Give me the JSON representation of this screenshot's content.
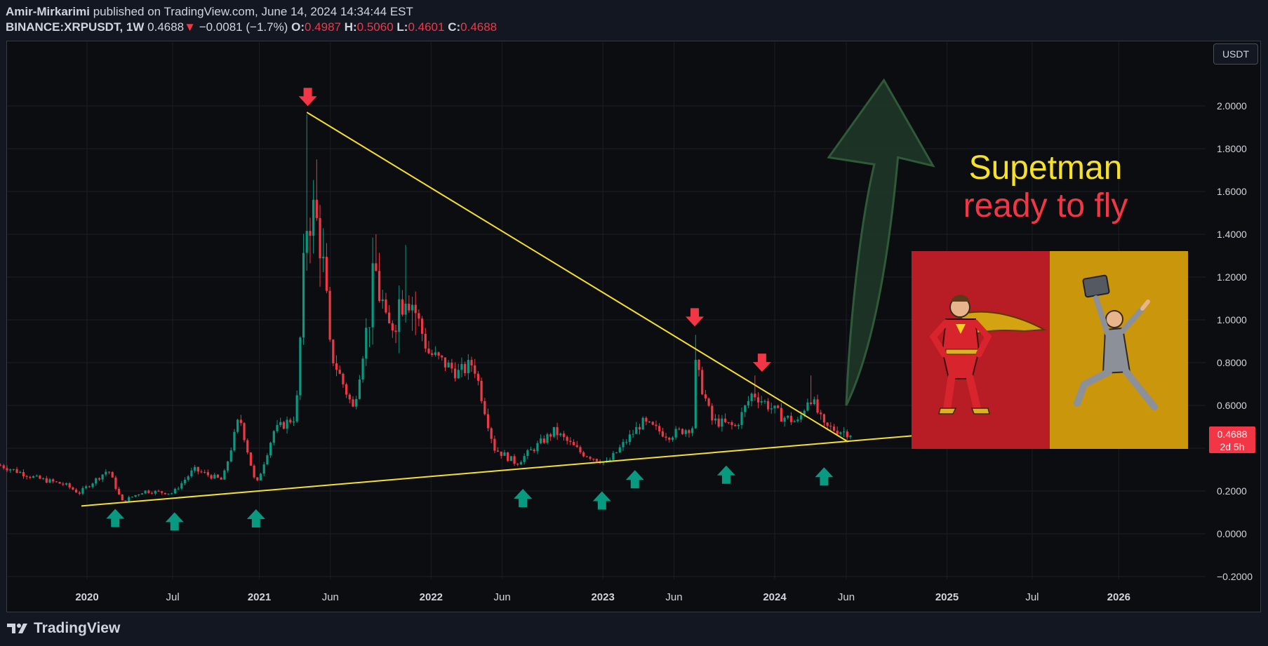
{
  "header": {
    "author": "Amir-Mirkarimi",
    "published": "published on TradingView.com, June 14, 2024 14:34:44 EST",
    "symbol": "BINANCE:XRPUSDT, 1W",
    "last": "0.4688",
    "change": "−0.0081 (−1.7%)",
    "o_label": "O:",
    "o_value": "0.4987",
    "h_label": "H:",
    "h_value": "0.5060",
    "l_label": "L:",
    "l_value": "0.4601",
    "c_label": "C:",
    "c_value": "0.4688"
  },
  "currency_button": "USDT",
  "price_badge": {
    "price": "0.4688",
    "countdown": "2d 5h"
  },
  "annotation": {
    "line1": "Supetman",
    "line2": "ready to fly"
  },
  "footer": {
    "brand": "TradingView"
  },
  "colors": {
    "bull": "#089981",
    "bear": "#f23645",
    "trendline": "#f5e02a",
    "arrow_fill": "#1e3a28",
    "arrow_stroke": "#2f5a3a",
    "panel_left": "#b81c24",
    "panel_right": "#c9960c"
  },
  "chart_data": {
    "type": "candlestick",
    "title": "",
    "ylim": [
      -0.25,
      2.2
    ],
    "y_ticks": [
      2.0,
      1.8,
      1.6,
      1.4,
      1.2,
      1.0,
      0.8,
      0.6,
      0.4,
      0.2,
      0.0,
      -0.2
    ],
    "y_tick_labels": [
      "2.0000",
      "1.8000",
      "1.6000",
      "1.4000",
      "1.2000",
      "1.0000",
      "0.8000",
      "0.6000",
      "0.4000",
      "0.2000",
      "0.0000",
      "−0.2000"
    ],
    "x_ticks": [
      {
        "label": "2020",
        "date": "2020-01-01"
      },
      {
        "label": "Jul",
        "date": "2020-07-01"
      },
      {
        "label": "2021",
        "date": "2021-01-01"
      },
      {
        "label": "Jun",
        "date": "2021-06-01"
      },
      {
        "label": "2022",
        "date": "2022-01-01"
      },
      {
        "label": "Jun",
        "date": "2022-06-01"
      },
      {
        "label": "2023",
        "date": "2023-01-01"
      },
      {
        "label": "Jun",
        "date": "2023-06-01"
      },
      {
        "label": "2024",
        "date": "2024-01-01"
      },
      {
        "label": "Jun",
        "date": "2024-06-01"
      },
      {
        "label": "2025",
        "date": "2025-01-01"
      },
      {
        "label": "Jul",
        "date": "2025-07-01"
      },
      {
        "label": "2026",
        "date": "2026-01-01"
      }
    ],
    "price_anchors": [
      [
        "2019-07-01",
        0.32
      ],
      [
        "2019-09-15",
        0.26
      ],
      [
        "2019-11-15",
        0.23
      ],
      [
        "2019-12-15",
        0.19
      ],
      [
        "2020-02-15",
        0.3
      ],
      [
        "2020-03-15",
        0.15
      ],
      [
        "2020-05-01",
        0.2
      ],
      [
        "2020-07-01",
        0.19
      ],
      [
        "2020-08-15",
        0.3
      ],
      [
        "2020-10-15",
        0.25
      ],
      [
        "2020-11-20",
        0.55
      ],
      [
        "2020-12-25",
        0.22
      ],
      [
        "2021-02-01",
        0.48
      ],
      [
        "2021-03-20",
        0.55
      ],
      [
        "2021-04-14",
        1.55
      ],
      [
        "2021-05-10",
        1.4
      ],
      [
        "2021-06-01",
        0.85
      ],
      [
        "2021-07-20",
        0.58
      ],
      [
        "2021-09-05",
        1.22
      ],
      [
        "2021-10-01",
        0.95
      ],
      [
        "2021-11-10",
        1.18
      ],
      [
        "2021-12-25",
        0.85
      ],
      [
        "2022-03-01",
        0.75
      ],
      [
        "2022-04-01",
        0.8
      ],
      [
        "2022-05-15",
        0.4
      ],
      [
        "2022-07-01",
        0.33
      ],
      [
        "2022-09-20",
        0.48
      ],
      [
        "2022-11-15",
        0.38
      ],
      [
        "2023-01-10",
        0.33
      ],
      [
        "2023-03-25",
        0.52
      ],
      [
        "2023-05-20",
        0.46
      ],
      [
        "2023-07-10",
        0.5
      ],
      [
        "2023-07-15",
        0.8
      ],
      [
        "2023-08-20",
        0.53
      ],
      [
        "2023-10-10",
        0.5
      ],
      [
        "2023-11-15",
        0.66
      ],
      [
        "2024-01-15",
        0.55
      ],
      [
        "2024-02-20",
        0.52
      ],
      [
        "2024-03-15",
        0.65
      ],
      [
        "2024-04-15",
        0.5
      ],
      [
        "2024-06-10",
        0.47
      ]
    ],
    "spikes": [
      {
        "date": "2021-04-14",
        "high": 1.96
      },
      {
        "date": "2021-05-05",
        "high": 1.75
      },
      {
        "date": "2021-09-05",
        "high": 1.4
      },
      {
        "date": "2021-11-10",
        "high": 1.35
      },
      {
        "date": "2023-07-15",
        "high": 0.93
      },
      {
        "date": "2023-11-20",
        "high": 0.74
      },
      {
        "date": "2024-03-15",
        "high": 0.74
      }
    ],
    "trendlines": [
      {
        "name": "descending resistance",
        "from": {
          "date": "2021-04-12",
          "price": 1.97
        },
        "to": {
          "date": "2024-06-05",
          "price": 0.43
        }
      },
      {
        "name": "ascending support",
        "from": {
          "date": "2019-12-20",
          "price": 0.13
        },
        "to": {
          "date": "2024-10-30",
          "price": 0.46
        }
      }
    ],
    "sell_markers": [
      "2021-04-14",
      "2023-07-15",
      "2023-12-05"
    ],
    "buy_markers": [
      "2020-03-01",
      "2020-07-05",
      "2020-12-25",
      "2022-07-15",
      "2022-12-30",
      "2023-03-10",
      "2023-09-20",
      "2024-04-15"
    ],
    "projection": {
      "from": {
        "date": "2024-06-01",
        "price": 0.6
      },
      "to": {
        "date": "2024-08-20",
        "price": 2.12
      }
    }
  }
}
